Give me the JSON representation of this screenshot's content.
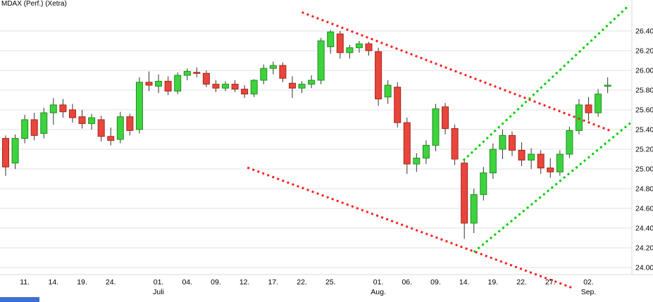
{
  "chart_data": {
    "type": "candlestick",
    "title": "MDAX (Perf.) (Xetra)",
    "instrument": "MDAX (Perf.)",
    "exchange": "Xetra",
    "grid": true,
    "legend": "none",
    "ylim": [
      24000,
      26400
    ],
    "y_axis": {
      "side": "right",
      "ticks": [
        {
          "value": 26400,
          "label": "26.400"
        },
        {
          "value": 26200,
          "label": "26.200"
        },
        {
          "value": 26000,
          "label": "26.000"
        },
        {
          "value": 25800,
          "label": "25.800"
        },
        {
          "value": 25600,
          "label": "25.600"
        },
        {
          "value": 25400,
          "label": "25.400"
        },
        {
          "value": 25200,
          "label": "25.200"
        },
        {
          "value": 25000,
          "label": "25.000"
        },
        {
          "value": 24800,
          "label": "24.800"
        },
        {
          "value": 24600,
          "label": "24.600"
        },
        {
          "value": 24400,
          "label": "24.400"
        },
        {
          "value": 24200,
          "label": "24.200"
        },
        {
          "value": 24000,
          "label": "24.000"
        }
      ]
    },
    "x_axis": {
      "labels": [
        {
          "i": 2,
          "label": "11."
        },
        {
          "i": 5,
          "label": "14."
        },
        {
          "i": 8,
          "label": "19."
        },
        {
          "i": 11,
          "label": "24."
        },
        {
          "i": 16,
          "label": "01."
        },
        {
          "i": 19,
          "label": "04."
        },
        {
          "i": 22,
          "label": "09."
        },
        {
          "i": 25,
          "label": "12."
        },
        {
          "i": 28,
          "label": "17."
        },
        {
          "i": 31,
          "label": "22."
        },
        {
          "i": 34,
          "label": "25."
        },
        {
          "i": 39,
          "label": "01."
        },
        {
          "i": 42,
          "label": "06."
        },
        {
          "i": 45,
          "label": "09."
        },
        {
          "i": 48,
          "label": "14."
        },
        {
          "i": 51,
          "label": "19."
        },
        {
          "i": 54,
          "label": "22."
        },
        {
          "i": 57,
          "label": "27."
        },
        {
          "i": 61,
          "label": "02."
        }
      ],
      "months": [
        {
          "i": 16,
          "label": "Juli"
        },
        {
          "i": 39,
          "label": "Aug."
        },
        {
          "i": 61,
          "label": "Sep."
        }
      ]
    },
    "candle_format": "[open, high, low, close]",
    "candles": [
      [
        25310,
        25340,
        24930,
        25020
      ],
      [
        25060,
        25350,
        25000,
        25310
      ],
      [
        25310,
        25550,
        25260,
        25500
      ],
      [
        25500,
        25570,
        25290,
        25340
      ],
      [
        25360,
        25620,
        25310,
        25570
      ],
      [
        25570,
        25720,
        25450,
        25650
      ],
      [
        25650,
        25710,
        25520,
        25580
      ],
      [
        25600,
        25660,
        25470,
        25520
      ],
      [
        25530,
        25600,
        25410,
        25460
      ],
      [
        25460,
        25560,
        25400,
        25520
      ],
      [
        25500,
        25540,
        25280,
        25330
      ],
      [
        25330,
        25420,
        25240,
        25290
      ],
      [
        25300,
        25580,
        25260,
        25530
      ],
      [
        25530,
        25560,
        25340,
        25390
      ],
      [
        25400,
        25930,
        25360,
        25880
      ],
      [
        25880,
        25990,
        25790,
        25850
      ],
      [
        25840,
        25960,
        25770,
        25890
      ],
      [
        25890,
        25940,
        25750,
        25790
      ],
      [
        25790,
        25980,
        25760,
        25950
      ],
      [
        25950,
        26020,
        25900,
        25990
      ],
      [
        25980,
        26030,
        25930,
        25970
      ],
      [
        25970,
        26000,
        25830,
        25860
      ],
      [
        25860,
        25900,
        25780,
        25820
      ],
      [
        25820,
        25890,
        25790,
        25860
      ],
      [
        25860,
        25900,
        25780,
        25810
      ],
      [
        25810,
        25850,
        25720,
        25760
      ],
      [
        25760,
        25910,
        25730,
        25900
      ],
      [
        25900,
        26060,
        25860,
        26020
      ],
      [
        26020,
        26090,
        25960,
        26050
      ],
      [
        26050,
        26080,
        25880,
        25920
      ],
      [
        25870,
        25940,
        25720,
        25820
      ],
      [
        25820,
        25890,
        25770,
        25860
      ],
      [
        25860,
        25950,
        25820,
        25900
      ],
      [
        25900,
        26330,
        25860,
        26300
      ],
      [
        26240,
        26410,
        26170,
        26390
      ],
      [
        26370,
        26400,
        26120,
        26180
      ],
      [
        26180,
        26260,
        26120,
        26230
      ],
      [
        26230,
        26300,
        26180,
        26270
      ],
      [
        26270,
        26290,
        26150,
        26200
      ],
      [
        26190,
        26230,
        25640,
        25710
      ],
      [
        25730,
        25900,
        25660,
        25850
      ],
      [
        25830,
        25880,
        25420,
        25470
      ],
      [
        25470,
        25520,
        24950,
        25050
      ],
      [
        25050,
        25160,
        24970,
        25110
      ],
      [
        25110,
        25290,
        25050,
        25240
      ],
      [
        25240,
        25660,
        25180,
        25610
      ],
      [
        25630,
        25670,
        25350,
        25410
      ],
      [
        25410,
        25450,
        25040,
        25100
      ],
      [
        25060,
        25110,
        24290,
        24450
      ],
      [
        24450,
        24800,
        24350,
        24740
      ],
      [
        24740,
        25020,
        24680,
        24960
      ],
      [
        24960,
        25260,
        24900,
        25200
      ],
      [
        25200,
        25400,
        25100,
        25340
      ],
      [
        25340,
        25380,
        25130,
        25190
      ],
      [
        25190,
        25270,
        25030,
        25090
      ],
      [
        25090,
        25210,
        25000,
        25150
      ],
      [
        25150,
        25190,
        24950,
        25010
      ],
      [
        25010,
        25110,
        24910,
        24970
      ],
      [
        24970,
        25190,
        24930,
        25150
      ],
      [
        25150,
        25430,
        25110,
        25390
      ],
      [
        25390,
        25710,
        25350,
        25650
      ],
      [
        25650,
        25730,
        25490,
        25570
      ],
      [
        25570,
        25810,
        25530,
        25760
      ],
      [
        25840,
        25930,
        25770,
        25850
      ]
    ],
    "trendlines": [
      {
        "name": "falling-channel-upper-red",
        "color": "#ff1e1e",
        "style": "dotted",
        "i1": 31.0,
        "v1": 26590,
        "i2": 63.5,
        "v2": 25380
      },
      {
        "name": "falling-channel-lower-red",
        "color": "#ff1e1e",
        "style": "dotted",
        "i1": 25.3,
        "v1": 25014,
        "i2": 59.5,
        "v2": 23786
      },
      {
        "name": "rising-channel-upper-green",
        "color": "#00cf00",
        "style": "dotted",
        "i1": 47.9,
        "v1": 25086,
        "i2": 65.2,
        "v2": 26657
      },
      {
        "name": "rising-channel-lower-green",
        "color": "#00cf00",
        "style": "dotted",
        "i1": 49.0,
        "v1": 24157,
        "i2": 65.5,
        "v2": 25476
      }
    ],
    "colors": {
      "up": "#3ed33e",
      "up_border": "#1f8f1f",
      "down": "#e8463c",
      "down_border": "#a8241a",
      "wick": "#333333",
      "grid": "#e2e2e2",
      "axis_text": "#000000",
      "trend_red": "#ff1e1e",
      "trend_green": "#00cf00",
      "scrollbar": "#3f6fd1"
    }
  }
}
